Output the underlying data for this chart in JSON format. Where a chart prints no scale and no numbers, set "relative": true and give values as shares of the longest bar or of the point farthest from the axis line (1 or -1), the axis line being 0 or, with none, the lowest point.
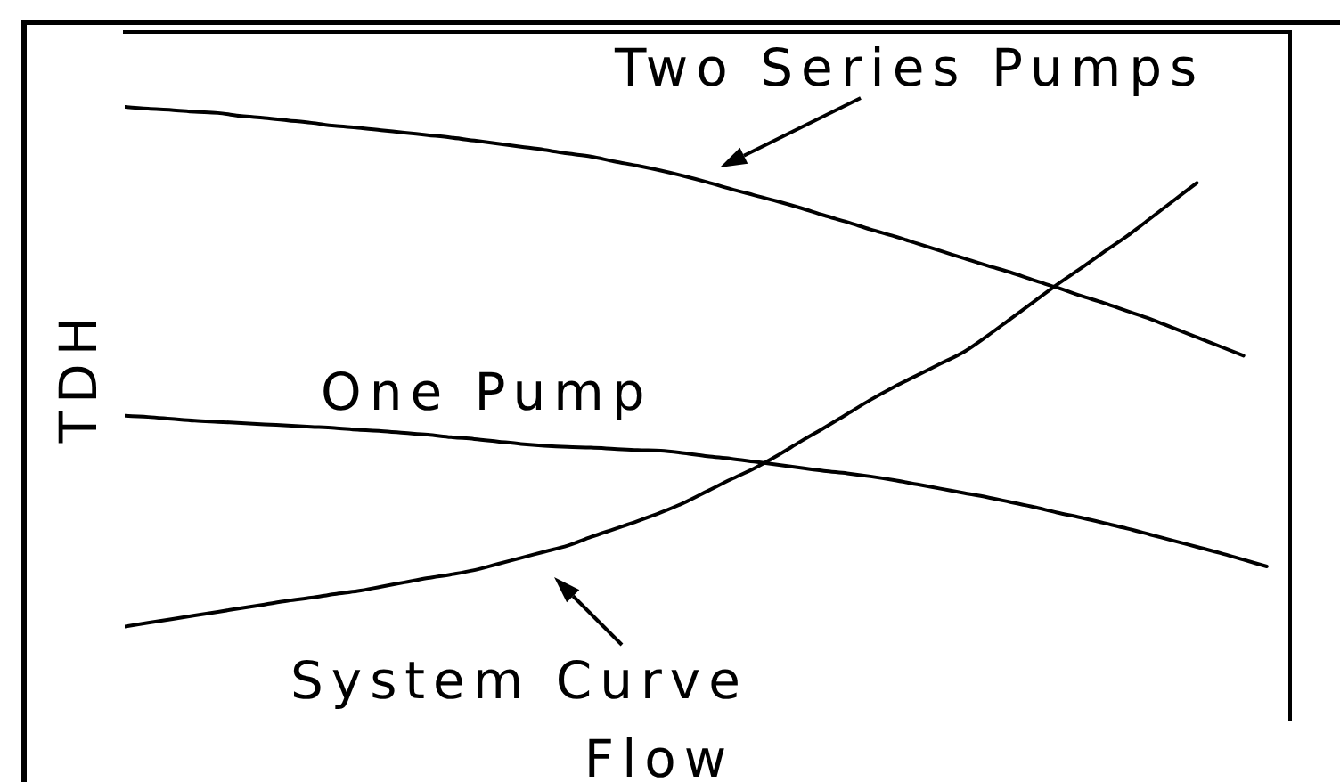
{
  "chart_data": {
    "type": "line",
    "xlabel": "Flow",
    "ylabel": "TDH",
    "relative": true,
    "tick_labels": false,
    "categories": [
      null,
      null,
      null,
      null,
      null,
      null,
      null,
      null,
      null,
      null,
      null,
      null,
      null,
      null,
      null,
      null,
      null,
      null,
      null,
      null,
      null,
      null,
      null,
      null,
      null,
      null,
      null,
      null,
      null,
      null,
      null,
      null,
      null,
      null,
      null,
      null,
      null,
      null,
      null,
      null,
      null,
      null,
      null,
      null,
      null,
      null,
      null,
      null,
      null,
      null
    ],
    "series": [
      {
        "name": "Two Series Pumps",
        "color": "#000000",
        "values": [
          1,
          0.997,
          0.995,
          0.992,
          0.99,
          0.985,
          0.982,
          0.978,
          0.974,
          0.969,
          0.966,
          0.962,
          0.958,
          0.954,
          0.95,
          0.945,
          0.94,
          0.935,
          0.93,
          0.924,
          0.919,
          0.911,
          0.904,
          0.896,
          0.887,
          0.877,
          0.866,
          0.856,
          0.846,
          0.835,
          0.823,
          0.812,
          0.8,
          0.789,
          0.777,
          0.765,
          0.753,
          0.741,
          0.73,
          0.717,
          0.705,
          0.692,
          0.68,
          0.667,
          0.654,
          0.639,
          0.624,
          0.609,
          0.594,
          null
        ]
      },
      {
        "name": "One Pump",
        "color": "#000000",
        "values": [
          0.496,
          0.494,
          0.491,
          0.488,
          0.486,
          0.484,
          0.482,
          0.48,
          0.478,
          0.476,
          0.473,
          0.471,
          0.468,
          0.465,
          0.461,
          0.458,
          0.454,
          0.45,
          0.447,
          0.445,
          0.444,
          0.442,
          0.44,
          0.439,
          0.435,
          0.43,
          0.426,
          0.421,
          0.416,
          0.411,
          0.406,
          0.402,
          0.397,
          0.391,
          0.384,
          0.377,
          0.37,
          0.363,
          0.355,
          0.347,
          0.338,
          0.33,
          0.321,
          0.312,
          0.302,
          0.292,
          0.282,
          0.272,
          0.261,
          0.25
        ]
      },
      {
        "name": "System Curve",
        "color": "#000000",
        "values": [
          0.152,
          0.158,
          0.164,
          0.17,
          0.176,
          0.182,
          0.188,
          0.194,
          0.199,
          0.205,
          0.21,
          0.217,
          0.224,
          0.231,
          0.237,
          0.244,
          0.254,
          0.264,
          0.274,
          0.284,
          0.298,
          0.311,
          0.324,
          0.338,
          0.354,
          0.373,
          0.392,
          0.41,
          0.431,
          0.454,
          0.476,
          0.499,
          0.522,
          0.543,
          0.562,
          0.581,
          0.6,
          0.626,
          0.654,
          0.682,
          0.71,
          0.736,
          0.763,
          0.789,
          0.818,
          0.847,
          0.876,
          null,
          null,
          null
        ]
      }
    ]
  }
}
